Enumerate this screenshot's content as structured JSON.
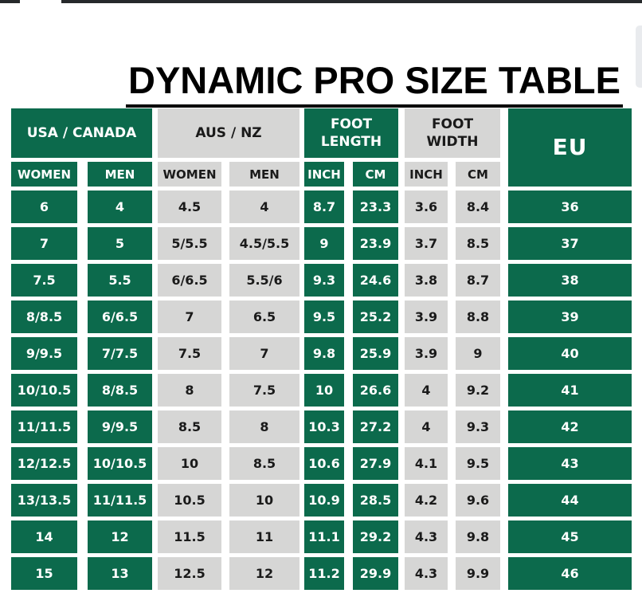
{
  "page": {
    "title": "DYNAMIC PRO SIZE TABLE"
  },
  "colors": {
    "green": "#0c6a4c",
    "light_gray": "#d6d6d5",
    "text_on_green": "#ffffff",
    "text_on_gray": "#1a1a1a",
    "title_color": "#000000"
  },
  "chart_data": {
    "type": "table",
    "title": "DYNAMIC PRO SIZE TABLE",
    "column_groups": [
      {
        "label": "USA / CANADA",
        "tone": "green",
        "span": 2,
        "row_span": 1
      },
      {
        "label": "AUS / NZ",
        "tone": "gray",
        "span": 2,
        "row_span": 1
      },
      {
        "label": "FOOT LENGTH",
        "tone": "green",
        "span": 2,
        "row_span": 1
      },
      {
        "label": "FOOT WIDTH",
        "tone": "gray",
        "span": 2,
        "row_span": 1
      },
      {
        "label": "EU",
        "tone": "green",
        "span": 1,
        "row_span": 2
      }
    ],
    "subheaders": [
      {
        "label": "WOMEN",
        "tone": "green"
      },
      {
        "label": "MEN",
        "tone": "green"
      },
      {
        "label": "WOMEN",
        "tone": "gray"
      },
      {
        "label": "MEN",
        "tone": "gray"
      },
      {
        "label": "INCH",
        "tone": "green"
      },
      {
        "label": "CM",
        "tone": "green"
      },
      {
        "label": "INCH",
        "tone": "gray"
      },
      {
        "label": "CM",
        "tone": "gray"
      }
    ],
    "column_tones": [
      "green",
      "green",
      "gray",
      "gray",
      "green",
      "green",
      "gray",
      "gray",
      "green"
    ],
    "rows": [
      [
        "6",
        "4",
        "4.5",
        "4",
        "8.7",
        "23.3",
        "3.6",
        "8.4",
        "36"
      ],
      [
        "7",
        "5",
        "5/5.5",
        "4.5/5.5",
        "9",
        "23.9",
        "3.7",
        "8.5",
        "37"
      ],
      [
        "7.5",
        "5.5",
        "6/6.5",
        "5.5/6",
        "9.3",
        "24.6",
        "3.8",
        "8.7",
        "38"
      ],
      [
        "8/8.5",
        "6/6.5",
        "7",
        "6.5",
        "9.5",
        "25.2",
        "3.9",
        "8.8",
        "39"
      ],
      [
        "9/9.5",
        "7/7.5",
        "7.5",
        "7",
        "9.8",
        "25.9",
        "3.9",
        "9",
        "40"
      ],
      [
        "10/10.5",
        "8/8.5",
        "8",
        "7.5",
        "10",
        "26.6",
        "4",
        "9.2",
        "41"
      ],
      [
        "11/11.5",
        "9/9.5",
        "8.5",
        "8",
        "10.3",
        "27.2",
        "4",
        "9.3",
        "42"
      ],
      [
        "12/12.5",
        "10/10.5",
        "10",
        "8.5",
        "10.6",
        "27.9",
        "4.1",
        "9.5",
        "43"
      ],
      [
        "13/13.5",
        "11/11.5",
        "10.5",
        "10",
        "10.9",
        "28.5",
        "4.2",
        "9.6",
        "44"
      ],
      [
        "14",
        "12",
        "11.5",
        "11",
        "11.1",
        "29.2",
        "4.3",
        "9.8",
        "45"
      ],
      [
        "15",
        "13",
        "12.5",
        "12",
        "11.2",
        "29.9",
        "4.3",
        "9.9",
        "46"
      ]
    ]
  }
}
